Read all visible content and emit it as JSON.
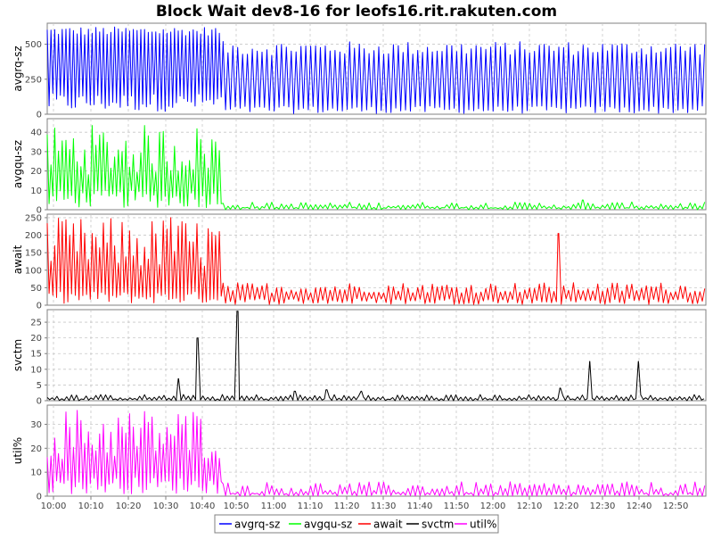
{
  "chart_data": {
    "type": "line",
    "title": "Block Wait dev8-16 for leofs16.rit.rakuten.com",
    "x_tick_labels": [
      "10:00",
      "10:10",
      "10:20",
      "10:30",
      "10:40",
      "10:50",
      "11:00",
      "11:10",
      "11:20",
      "11:30",
      "11:40",
      "11:50",
      "12:00",
      "12:10",
      "12:20",
      "12:30",
      "12:40",
      "12:50"
    ],
    "x_range_minutes": [
      0,
      176
    ],
    "grid": true,
    "legend_position": "bottom",
    "legend": [
      "avgrq-sz",
      "avgqu-sz",
      "await",
      "svctm",
      "util%"
    ],
    "panels": [
      {
        "name": "avgrq-sz",
        "ylabel": "avgrq-sz",
        "color": "#0000ff",
        "ylim": [
          0,
          650
        ],
        "ticks": [
          0,
          250,
          500
        ],
        "segments": [
          {
            "from": 0,
            "to": 47,
            "high": [
              560,
              625
            ],
            "low": [
              20,
              150
            ],
            "period": 1.0
          },
          {
            "from": 47,
            "to": 176,
            "high": [
              420,
              520
            ],
            "low": [
              5,
              60
            ],
            "period": 1.3
          }
        ],
        "spikes": []
      },
      {
        "name": "avgqu-sz",
        "ylabel": "avgqu-sz",
        "color": "#00ff00",
        "ylim": [
          0,
          47
        ],
        "ticks": [
          0,
          10,
          20,
          30,
          40
        ],
        "segments": [
          {
            "from": 0,
            "to": 47,
            "high": [
              18,
              44
            ],
            "low": [
              1,
              10
            ],
            "period": 1.0
          },
          {
            "from": 47,
            "to": 176,
            "high": [
              1,
              4
            ],
            "low": [
              0,
              1
            ],
            "period": 1.3
          }
        ],
        "spikes": [
          {
            "x": 143,
            "y": 5
          }
        ]
      },
      {
        "name": "await",
        "ylabel": "await",
        "color": "#ff0000",
        "ylim": [
          0,
          260
        ],
        "ticks": [
          0,
          50,
          100,
          150,
          200,
          250
        ],
        "segments": [
          {
            "from": 0,
            "to": 47,
            "high": [
              100,
              250
            ],
            "low": [
              5,
              40
            ],
            "period": 1.0
          },
          {
            "from": 47,
            "to": 176,
            "high": [
              35,
              65
            ],
            "low": [
              2,
              20
            ],
            "period": 1.3
          }
        ],
        "spikes": [
          {
            "x": 136.5,
            "y": 205
          },
          {
            "x": 33,
            "y": 250
          }
        ]
      },
      {
        "name": "svctm",
        "ylabel": "svctm",
        "color": "#000000",
        "ylim": [
          0,
          29
        ],
        "ticks": [
          0,
          5,
          10,
          15,
          20,
          25
        ],
        "segments": [
          {
            "from": 0,
            "to": 176,
            "high": [
              0.5,
              2
            ],
            "low": [
              0,
              0.4
            ],
            "period": 1.3
          }
        ],
        "spikes": [
          {
            "x": 35,
            "y": 7
          },
          {
            "x": 40,
            "y": 20
          },
          {
            "x": 51,
            "y": 28.5
          },
          {
            "x": 66,
            "y": 3
          },
          {
            "x": 74.5,
            "y": 3.5
          },
          {
            "x": 84,
            "y": 3
          },
          {
            "x": 137,
            "y": 4
          },
          {
            "x": 145,
            "y": 12.5
          },
          {
            "x": 158,
            "y": 12.5
          }
        ]
      },
      {
        "name": "util%",
        "ylabel": "util%",
        "color": "#ff00ff",
        "ylim": [
          0,
          38
        ],
        "ticks": [
          0,
          10,
          20,
          30
        ],
        "segments": [
          {
            "from": 0,
            "to": 47,
            "high": [
              15,
              37
            ],
            "low": [
              1,
              8
            ],
            "period": 1.0
          },
          {
            "from": 47,
            "to": 176,
            "high": [
              1,
              6
            ],
            "low": [
              0,
              1
            ],
            "period": 1.3
          }
        ],
        "spikes": []
      }
    ]
  }
}
